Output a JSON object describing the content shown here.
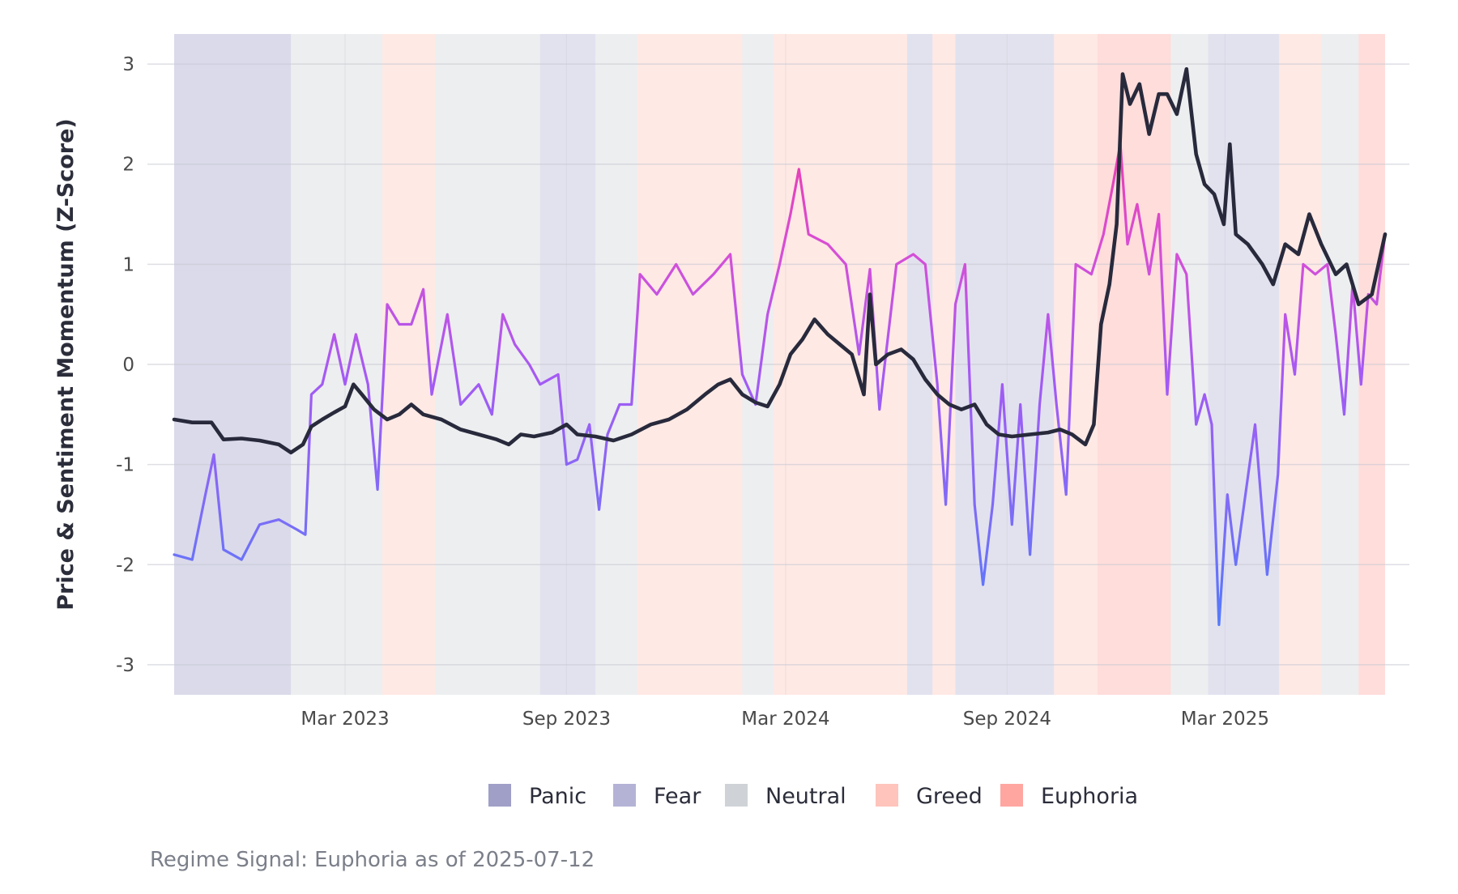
{
  "chart_data": {
    "type": "line",
    "ylabel": "Price & Sentiment Momentum (Z-Score)",
    "xlabel": "",
    "ylim": [
      -3.3,
      3.3
    ],
    "yticks": [
      3,
      2,
      1,
      0,
      -1,
      -2,
      -3
    ],
    "ytick_labels": [
      "3",
      "2",
      "1",
      "0",
      "-1",
      "-2",
      "-3"
    ],
    "xlim": [
      "2022-10-10",
      "2025-07-12"
    ],
    "xticks": [
      {
        "date": "2023-03-01",
        "label": "Mar 2023"
      },
      {
        "date": "2023-09-01",
        "label": "Sep 2023"
      },
      {
        "date": "2024-03-01",
        "label": "Mar 2024"
      },
      {
        "date": "2024-09-01",
        "label": "Sep 2024"
      },
      {
        "date": "2025-03-01",
        "label": "Mar 2025"
      }
    ],
    "grid": true,
    "legend_position": "bottom",
    "regime_colors": {
      "Panic": "#9f9fc8",
      "Fear": "#b4b3d6",
      "Neutral": "#cfd3d8",
      "Greed": "#ffc4bb",
      "Euphoria": "#ffa6a1"
    },
    "regimes": [
      {
        "start": "2022-10-10",
        "end": "2023-01-15",
        "regime": "Panic"
      },
      {
        "start": "2023-01-15",
        "end": "2023-04-01",
        "regime": "Neutral"
      },
      {
        "start": "2023-04-01",
        "end": "2023-05-15",
        "regime": "Greed"
      },
      {
        "start": "2023-05-15",
        "end": "2023-08-10",
        "regime": "Neutral"
      },
      {
        "start": "2023-08-10",
        "end": "2023-09-25",
        "regime": "Fear"
      },
      {
        "start": "2023-09-25",
        "end": "2023-10-30",
        "regime": "Neutral"
      },
      {
        "start": "2023-10-30",
        "end": "2024-01-25",
        "regime": "Greed"
      },
      {
        "start": "2024-01-25",
        "end": "2024-02-20",
        "regime": "Neutral"
      },
      {
        "start": "2024-02-20",
        "end": "2024-06-10",
        "regime": "Greed"
      },
      {
        "start": "2024-06-10",
        "end": "2024-07-01",
        "regime": "Fear"
      },
      {
        "start": "2024-07-01",
        "end": "2024-07-20",
        "regime": "Greed"
      },
      {
        "start": "2024-07-20",
        "end": "2024-10-10",
        "regime": "Fear"
      },
      {
        "start": "2024-10-10",
        "end": "2024-11-15",
        "regime": "Greed"
      },
      {
        "start": "2024-11-15",
        "end": "2025-01-15",
        "regime": "Euphoria"
      },
      {
        "start": "2025-01-15",
        "end": "2025-02-15",
        "regime": "Neutral"
      },
      {
        "start": "2025-02-15",
        "end": "2025-04-15",
        "regime": "Fear"
      },
      {
        "start": "2025-04-15",
        "end": "2025-05-20",
        "regime": "Greed"
      },
      {
        "start": "2025-05-20",
        "end": "2025-06-20",
        "regime": "Neutral"
      },
      {
        "start": "2025-06-20",
        "end": "2025-07-12",
        "regime": "Euphoria"
      }
    ],
    "series": [
      {
        "color": "#282a3c",
        "points": [
          [
            "2022-10-10",
            -0.55
          ],
          [
            "2022-10-25",
            -0.58
          ],
          [
            "2022-11-10",
            -0.58
          ],
          [
            "2022-11-20",
            -0.75
          ],
          [
            "2022-12-05",
            -0.74
          ],
          [
            "2022-12-20",
            -0.76
          ],
          [
            "2023-01-05",
            -0.8
          ],
          [
            "2023-01-15",
            -0.88
          ],
          [
            "2023-01-25",
            -0.8
          ],
          [
            "2023-02-01",
            -0.62
          ],
          [
            "2023-02-10",
            -0.55
          ],
          [
            "2023-02-20",
            -0.48
          ],
          [
            "2023-03-01",
            -0.42
          ],
          [
            "2023-03-08",
            -0.2
          ],
          [
            "2023-03-15",
            -0.3
          ],
          [
            "2023-03-25",
            -0.45
          ],
          [
            "2023-04-05",
            -0.55
          ],
          [
            "2023-04-15",
            -0.5
          ],
          [
            "2023-04-25",
            -0.4
          ],
          [
            "2023-05-05",
            -0.5
          ],
          [
            "2023-05-20",
            -0.55
          ],
          [
            "2023-06-05",
            -0.65
          ],
          [
            "2023-06-20",
            -0.7
          ],
          [
            "2023-07-05",
            -0.75
          ],
          [
            "2023-07-15",
            -0.8
          ],
          [
            "2023-07-25",
            -0.7
          ],
          [
            "2023-08-05",
            -0.72
          ],
          [
            "2023-08-20",
            -0.68
          ],
          [
            "2023-09-01",
            -0.6
          ],
          [
            "2023-09-10",
            -0.7
          ],
          [
            "2023-09-25",
            -0.72
          ],
          [
            "2023-10-10",
            -0.76
          ],
          [
            "2023-10-25",
            -0.7
          ],
          [
            "2023-11-10",
            -0.6
          ],
          [
            "2023-11-25",
            -0.55
          ],
          [
            "2023-12-10",
            -0.45
          ],
          [
            "2023-12-25",
            -0.3
          ],
          [
            "2024-01-05",
            -0.2
          ],
          [
            "2024-01-15",
            -0.15
          ],
          [
            "2024-01-25",
            -0.3
          ],
          [
            "2024-02-05",
            -0.38
          ],
          [
            "2024-02-15",
            -0.42
          ],
          [
            "2024-02-25",
            -0.2
          ],
          [
            "2024-03-05",
            0.1
          ],
          [
            "2024-03-15",
            0.25
          ],
          [
            "2024-03-25",
            0.45
          ],
          [
            "2024-04-05",
            0.3
          ],
          [
            "2024-04-15",
            0.2
          ],
          [
            "2024-04-25",
            0.1
          ],
          [
            "2024-05-05",
            -0.3
          ],
          [
            "2024-05-10",
            0.7
          ],
          [
            "2024-05-15",
            0.0
          ],
          [
            "2024-05-25",
            0.1
          ],
          [
            "2024-06-05",
            0.15
          ],
          [
            "2024-06-15",
            0.05
          ],
          [
            "2024-06-25",
            -0.15
          ],
          [
            "2024-07-05",
            -0.3
          ],
          [
            "2024-07-15",
            -0.4
          ],
          [
            "2024-07-25",
            -0.45
          ],
          [
            "2024-08-05",
            -0.4
          ],
          [
            "2024-08-15",
            -0.6
          ],
          [
            "2024-08-25",
            -0.7
          ],
          [
            "2024-09-05",
            -0.72
          ],
          [
            "2024-09-20",
            -0.7
          ],
          [
            "2024-10-05",
            -0.68
          ],
          [
            "2024-10-15",
            -0.65
          ],
          [
            "2024-10-25",
            -0.7
          ],
          [
            "2024-11-05",
            -0.8
          ],
          [
            "2024-11-12",
            -0.6
          ],
          [
            "2024-11-18",
            0.4
          ],
          [
            "2024-11-25",
            0.8
          ],
          [
            "2024-12-01",
            1.4
          ],
          [
            "2024-12-06",
            2.9
          ],
          [
            "2024-12-12",
            2.6
          ],
          [
            "2024-12-20",
            2.8
          ],
          [
            "2024-12-28",
            2.3
          ],
          [
            "2025-01-05",
            2.7
          ],
          [
            "2025-01-12",
            2.7
          ],
          [
            "2025-01-20",
            2.5
          ],
          [
            "2025-01-28",
            2.95
          ],
          [
            "2025-02-05",
            2.1
          ],
          [
            "2025-02-12",
            1.8
          ],
          [
            "2025-02-20",
            1.7
          ],
          [
            "2025-02-28",
            1.4
          ],
          [
            "2025-03-05",
            2.2
          ],
          [
            "2025-03-10",
            1.3
          ],
          [
            "2025-03-20",
            1.2
          ],
          [
            "2025-04-01",
            1.0
          ],
          [
            "2025-04-10",
            0.8
          ],
          [
            "2025-04-20",
            1.2
          ],
          [
            "2025-05-01",
            1.1
          ],
          [
            "2025-05-10",
            1.5
          ],
          [
            "2025-05-20",
            1.2
          ],
          [
            "2025-06-01",
            0.9
          ],
          [
            "2025-06-10",
            1.0
          ],
          [
            "2025-06-20",
            0.6
          ],
          [
            "2025-07-01",
            0.7
          ],
          [
            "2025-07-12",
            1.3
          ]
        ]
      },
      {
        "color": "#a85cf0",
        "points": [
          [
            "2022-10-10",
            -1.9
          ],
          [
            "2022-10-25",
            -1.95
          ],
          [
            "2022-11-05",
            -1.3
          ],
          [
            "2022-11-12",
            -0.9
          ],
          [
            "2022-11-20",
            -1.85
          ],
          [
            "2022-12-05",
            -1.95
          ],
          [
            "2022-12-20",
            -1.6
          ],
          [
            "2023-01-05",
            -1.55
          ],
          [
            "2023-01-20",
            -1.65
          ],
          [
            "2023-01-27",
            -1.7
          ],
          [
            "2023-02-01",
            -0.3
          ],
          [
            "2023-02-10",
            -0.2
          ],
          [
            "2023-02-20",
            0.3
          ],
          [
            "2023-03-01",
            -0.2
          ],
          [
            "2023-03-10",
            0.3
          ],
          [
            "2023-03-20",
            -0.2
          ],
          [
            "2023-03-28",
            -1.25
          ],
          [
            "2023-04-05",
            0.6
          ],
          [
            "2023-04-15",
            0.4
          ],
          [
            "2023-04-25",
            0.4
          ],
          [
            "2023-05-05",
            0.75
          ],
          [
            "2023-05-12",
            -0.3
          ],
          [
            "2023-05-25",
            0.5
          ],
          [
            "2023-06-05",
            -0.4
          ],
          [
            "2023-06-20",
            -0.2
          ],
          [
            "2023-07-01",
            -0.5
          ],
          [
            "2023-07-10",
            0.5
          ],
          [
            "2023-07-20",
            0.2
          ],
          [
            "2023-08-01",
            0.0
          ],
          [
            "2023-08-10",
            -0.2
          ],
          [
            "2023-08-25",
            -0.1
          ],
          [
            "2023-09-01",
            -1.0
          ],
          [
            "2023-09-10",
            -0.95
          ],
          [
            "2023-09-20",
            -0.6
          ],
          [
            "2023-09-28",
            -1.45
          ],
          [
            "2023-10-05",
            -0.7
          ],
          [
            "2023-10-15",
            -0.4
          ],
          [
            "2023-10-25",
            -0.4
          ],
          [
            "2023-11-01",
            0.9
          ],
          [
            "2023-11-15",
            0.7
          ],
          [
            "2023-12-01",
            1.0
          ],
          [
            "2023-12-15",
            0.7
          ],
          [
            "2024-01-01",
            0.9
          ],
          [
            "2024-01-15",
            1.1
          ],
          [
            "2024-01-25",
            -0.1
          ],
          [
            "2024-02-05",
            -0.4
          ],
          [
            "2024-02-15",
            0.5
          ],
          [
            "2024-02-25",
            1.0
          ],
          [
            "2024-03-05",
            1.5
          ],
          [
            "2024-03-12",
            1.95
          ],
          [
            "2024-03-20",
            1.3
          ],
          [
            "2024-04-05",
            1.2
          ],
          [
            "2024-04-20",
            1.0
          ],
          [
            "2024-05-01",
            0.1
          ],
          [
            "2024-05-10",
            0.95
          ],
          [
            "2024-05-18",
            -0.45
          ],
          [
            "2024-06-01",
            1.0
          ],
          [
            "2024-06-15",
            1.1
          ],
          [
            "2024-06-25",
            1.0
          ],
          [
            "2024-07-05",
            -0.2
          ],
          [
            "2024-07-12",
            -1.4
          ],
          [
            "2024-07-20",
            0.6
          ],
          [
            "2024-07-28",
            1.0
          ],
          [
            "2024-08-05",
            -1.4
          ],
          [
            "2024-08-12",
            -2.2
          ],
          [
            "2024-08-20",
            -1.4
          ],
          [
            "2024-08-28",
            -0.2
          ],
          [
            "2024-09-05",
            -1.6
          ],
          [
            "2024-09-12",
            -0.4
          ],
          [
            "2024-09-20",
            -1.9
          ],
          [
            "2024-09-28",
            -0.4
          ],
          [
            "2024-10-05",
            0.5
          ],
          [
            "2024-10-12",
            -0.4
          ],
          [
            "2024-10-20",
            -1.3
          ],
          [
            "2024-10-28",
            1.0
          ],
          [
            "2024-11-10",
            0.9
          ],
          [
            "2024-11-20",
            1.3
          ],
          [
            "2024-11-28",
            1.8
          ],
          [
            "2024-12-04",
            2.2
          ],
          [
            "2024-12-10",
            1.2
          ],
          [
            "2024-12-18",
            1.6
          ],
          [
            "2024-12-28",
            0.9
          ],
          [
            "2025-01-05",
            1.5
          ],
          [
            "2025-01-12",
            -0.3
          ],
          [
            "2025-01-20",
            1.1
          ],
          [
            "2025-01-28",
            0.9
          ],
          [
            "2025-02-05",
            -0.6
          ],
          [
            "2025-02-12",
            -0.3
          ],
          [
            "2025-02-18",
            -0.6
          ],
          [
            "2025-02-24",
            -2.6
          ],
          [
            "2025-03-03",
            -1.3
          ],
          [
            "2025-03-10",
            -2.0
          ],
          [
            "2025-03-18",
            -1.3
          ],
          [
            "2025-03-26",
            -0.6
          ],
          [
            "2025-04-05",
            -2.1
          ],
          [
            "2025-04-14",
            -1.1
          ],
          [
            "2025-04-20",
            0.5
          ],
          [
            "2025-04-28",
            -0.1
          ],
          [
            "2025-05-05",
            1.0
          ],
          [
            "2025-05-15",
            0.9
          ],
          [
            "2025-05-25",
            1.0
          ],
          [
            "2025-06-01",
            0.3
          ],
          [
            "2025-06-08",
            -0.5
          ],
          [
            "2025-06-15",
            0.8
          ],
          [
            "2025-06-22",
            -0.2
          ],
          [
            "2025-06-28",
            0.7
          ],
          [
            "2025-07-05",
            0.6
          ],
          [
            "2025-07-12",
            1.3
          ]
        ]
      }
    ],
    "legend": [
      {
        "label": "Panic",
        "color": "#9f9fc8"
      },
      {
        "label": "Fear",
        "color": "#b4b3d6"
      },
      {
        "label": "Neutral",
        "color": "#cfd3d8"
      },
      {
        "label": "Greed",
        "color": "#ffc4bb"
      },
      {
        "label": "Euphoria",
        "color": "#ffa6a1"
      }
    ]
  },
  "caption": "Regime Signal: Euphoria as of 2025-07-12"
}
